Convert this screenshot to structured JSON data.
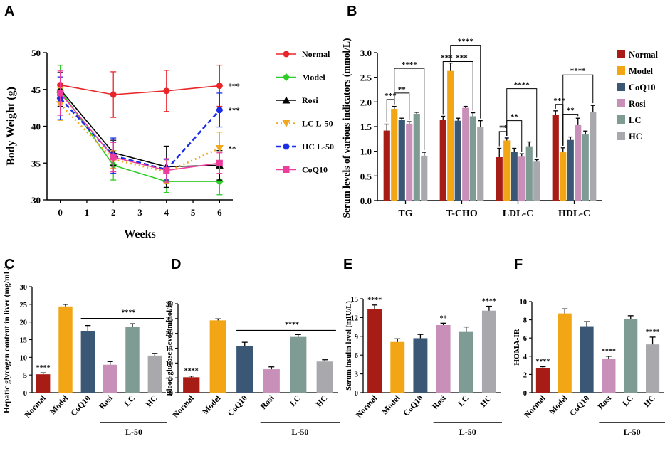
{
  "panels": [
    {
      "id": "A",
      "label": "A"
    },
    {
      "id": "B",
      "label": "B"
    },
    {
      "id": "C",
      "label": "C"
    },
    {
      "id": "D",
      "label": "D"
    },
    {
      "id": "E",
      "label": "E"
    },
    {
      "id": "F",
      "label": "F"
    }
  ],
  "chart_data": [
    {
      "id": "A",
      "type": "line",
      "title": "",
      "xlabel": "Weeks",
      "ylabel": "Body Weight (g)",
      "x": [
        0,
        2,
        4,
        6
      ],
      "xticks": [
        "0",
        "1",
        "2",
        "3",
        "4",
        "5",
        "6"
      ],
      "yticks": [
        "30",
        "35",
        "40",
        "45",
        "50"
      ],
      "xlim": [
        -0.5,
        6.5
      ],
      "ylim": [
        30,
        50
      ],
      "series": [
        {
          "name": "Normal",
          "color": "#e8262a",
          "dash": "solid",
          "marker": "circle",
          "values": [
            45.6,
            44.3,
            44.8,
            45.5
          ],
          "err": [
            2.7,
            3.1,
            2.8,
            2.8
          ]
        },
        {
          "name": "Model",
          "color": "#2ecc27",
          "dash": "solid",
          "marker": "diamond",
          "values": [
            44.9,
            34.7,
            32.5,
            32.5
          ],
          "err": [
            3.4,
            2.0,
            1.5,
            1.8
          ]
        },
        {
          "name": "Rosi",
          "color": "#000000",
          "dash": "solid",
          "marker": "triangle",
          "values": [
            45.0,
            36.4,
            34.5,
            34.7
          ],
          "err": [
            2.3,
            1.7,
            2.8,
            2.0
          ]
        },
        {
          "name": "LC L-50",
          "color": "#f0a81e",
          "dash": "dot",
          "marker": "triangle-down",
          "values": [
            43.0,
            35.5,
            33.8,
            37.0
          ],
          "err": [
            2.2,
            1.2,
            1.5,
            2.2
          ]
        },
        {
          "name": "HC L-50",
          "color": "#1a2ee8",
          "dash": "dash",
          "marker": "hexagon",
          "values": [
            43.8,
            36.0,
            34.1,
            42.2
          ],
          "err": [
            2.9,
            2.4,
            1.4,
            2.3
          ]
        },
        {
          "name": "CoQ10",
          "color": "#ec3d9c",
          "dash": "solid",
          "marker": "square",
          "values": [
            44.5,
            35.8,
            34.0,
            35.0
          ],
          "err": [
            3.0,
            2.0,
            1.6,
            1.4
          ]
        }
      ],
      "annotations": [
        {
          "text": "***",
          "series": "Normal"
        },
        {
          "text": "***",
          "series": "HC L-50"
        },
        {
          "text": "**",
          "series": "LC L-50"
        }
      ]
    },
    {
      "id": "B",
      "type": "bar",
      "title": "",
      "xlabel": "",
      "ylabel": "Serum levels of various indicators (mmol/L)",
      "categories": [
        "TG",
        "T-CHO",
        "LDL-C",
        "HDL-C"
      ],
      "yticks": [
        "0.0",
        "0.5",
        "1.0",
        "1.5",
        "2.0",
        "2.5",
        "3.0"
      ],
      "ylim": [
        0,
        3.0
      ],
      "series": [
        {
          "name": "Normal",
          "color": "#a71c14",
          "values": [
            1.42,
            1.63,
            0.88,
            1.74
          ],
          "err": [
            0.13,
            0.08,
            0.18,
            0.08
          ]
        },
        {
          "name": "Model",
          "color": "#f2a615",
          "values": [
            1.86,
            2.63,
            1.22,
            0.98
          ],
          "err": [
            0.05,
            0.16,
            0.05,
            0.09
          ]
        },
        {
          "name": "CoQ10",
          "color": "#3a5876",
          "values": [
            1.63,
            1.62,
            0.99,
            1.23
          ],
          "err": [
            0.04,
            0.05,
            0.07,
            0.06
          ]
        },
        {
          "name": "Rosi",
          "color": "#c890b8",
          "values": [
            1.56,
            1.88,
            0.89,
            1.53
          ],
          "err": [
            0.04,
            0.03,
            0.06,
            0.14
          ]
        },
        {
          "name": "LC",
          "color": "#7e9c94",
          "values": [
            1.76,
            1.71,
            1.1,
            1.34
          ],
          "err": [
            0.03,
            0.07,
            0.09,
            0.07
          ]
        },
        {
          "name": "HC",
          "color": "#a8a8ad",
          "values": [
            0.91,
            1.5,
            0.79,
            1.8
          ],
          "err": [
            0.07,
            0.12,
            0.04,
            0.13
          ]
        }
      ],
      "significance": [
        {
          "text": "***",
          "group": "TG"
        },
        {
          "text": "**",
          "group": "TG"
        },
        {
          "text": "****",
          "group": "TG"
        },
        {
          "text": "***",
          "group": "T-CHO"
        },
        {
          "text": "***",
          "group": "T-CHO"
        },
        {
          "text": "****",
          "group": "T-CHO"
        },
        {
          "text": "**",
          "group": "LDL-C"
        },
        {
          "text": "**",
          "group": "LDL-C"
        },
        {
          "text": "****",
          "group": "LDL-C"
        },
        {
          "text": "***",
          "group": "HDL-C"
        },
        {
          "text": "**",
          "group": "HDL-C"
        },
        {
          "text": "****",
          "group": "HDL-C"
        }
      ]
    },
    {
      "id": "C",
      "type": "bar",
      "title": "",
      "xlabel": "",
      "ylabel": "Hepatic glycogen content in liver (mg/mL)",
      "categories": [
        "Normal",
        "Model",
        "CoQ10",
        "Rosi",
        "LC",
        "HC"
      ],
      "colors": [
        "#a71c14",
        "#f2a615",
        "#3a5876",
        "#c890b8",
        "#7e9c94",
        "#a8a8ad"
      ],
      "values": [
        5.2,
        24.4,
        17.5,
        7.9,
        18.7,
        10.5
      ],
      "err": [
        0.4,
        0.6,
        1.5,
        0.9,
        0.8,
        0.6
      ],
      "yticks": [
        "0",
        "5",
        "10",
        "15",
        "20",
        "25",
        "30"
      ],
      "ylim": [
        0,
        30
      ],
      "group_label": "L-50",
      "significance": [
        {
          "text": "****",
          "on": "Normal"
        },
        {
          "text": "****",
          "bracket": "CoQ10-HC"
        }
      ]
    },
    {
      "id": "D",
      "type": "bar",
      "title": "",
      "xlabel": "",
      "ylabel": "Blood glucose Level  (mmol/L)",
      "categories": [
        "Normal",
        "Model",
        "CoQ10",
        "Rosi",
        "LC",
        "HC"
      ],
      "colors": [
        "#a71c14",
        "#f2a615",
        "#3a5876",
        "#c890b8",
        "#7e9c94",
        "#a8a8ad"
      ],
      "values": [
        5.2,
        24.4,
        15.6,
        7.9,
        18.8,
        10.5
      ],
      "err": [
        0.4,
        0.5,
        1.4,
        0.8,
        0.8,
        0.6
      ],
      "yticks": [
        "0",
        "5",
        "10",
        "15",
        "20",
        "25",
        "30"
      ],
      "ylim": [
        0,
        30
      ],
      "group_label": "L-50",
      "significance": [
        {
          "text": "****",
          "on": "Normal"
        },
        {
          "text": "****",
          "bracket": "CoQ10-HC"
        }
      ]
    },
    {
      "id": "E",
      "type": "bar",
      "title": "",
      "xlabel": "",
      "ylabel": "Serum insulin level (mIU/L)",
      "categories": [
        "Normal",
        "Model",
        "CoQ10",
        "Rosi",
        "LC",
        "HC"
      ],
      "colors": [
        "#a71c14",
        "#f2a615",
        "#3a5876",
        "#c890b8",
        "#7e9c94",
        "#a8a8ad"
      ],
      "values": [
        13.3,
        8.1,
        8.7,
        10.8,
        9.7,
        13.1
      ],
      "err": [
        0.7,
        0.5,
        0.6,
        0.3,
        0.8,
        0.7
      ],
      "yticks": [
        "0",
        "3",
        "6",
        "9",
        "12",
        "15"
      ],
      "ylim": [
        0,
        15
      ],
      "group_label": "L-50",
      "significance": [
        {
          "text": "****",
          "on": "Normal"
        },
        {
          "text": "**",
          "on": "Rosi"
        },
        {
          "text": "****",
          "on": "HC"
        }
      ]
    },
    {
      "id": "F",
      "type": "bar",
      "title": "",
      "xlabel": "",
      "ylabel": "HOMA-IR",
      "categories": [
        "Normal",
        "Model",
        "CoQ10",
        "Rosi",
        "LC",
        "HC"
      ],
      "colors": [
        "#a71c14",
        "#f2a615",
        "#3a5876",
        "#c890b8",
        "#7e9c94",
        "#a8a8ad"
      ],
      "values": [
        2.7,
        8.7,
        7.3,
        3.7,
        8.1,
        5.3
      ],
      "err": [
        0.15,
        0.5,
        0.5,
        0.3,
        0.35,
        0.8
      ],
      "yticks": [
        "0",
        "2",
        "4",
        "6",
        "8",
        "10"
      ],
      "ylim": [
        0,
        10
      ],
      "group_label": "L-50",
      "significance": [
        {
          "text": "****",
          "on": "Normal"
        },
        {
          "text": "****",
          "on": "Rosi"
        },
        {
          "text": "****",
          "on": "HC"
        }
      ]
    }
  ]
}
